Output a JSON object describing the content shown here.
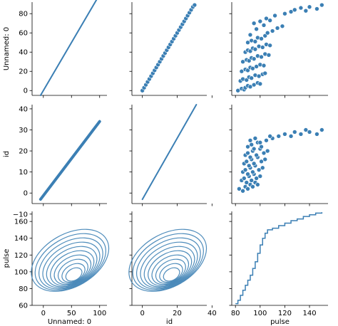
{
  "chart_data": {
    "type": "pairplot",
    "variables": [
      "Unnamed: 0",
      "id",
      "pulse"
    ],
    "color": "#3b7fb4",
    "panels": [
      {
        "row": 0,
        "col": 0,
        "type": "line",
        "x": [
          -5,
          95
        ],
        "y": [
          -5,
          95
        ]
      },
      {
        "row": 0,
        "col": 1,
        "type": "scatter",
        "x": [
          0,
          1,
          2,
          3,
          4,
          5,
          6,
          7,
          8,
          9,
          10,
          11,
          12,
          13,
          14,
          15,
          16,
          17,
          18,
          19,
          20,
          21,
          22,
          23,
          24,
          25,
          26,
          27,
          28,
          29,
          30
        ],
        "y": [
          0,
          3,
          6,
          9,
          12,
          15,
          18,
          21,
          24,
          27,
          30,
          33,
          36,
          39,
          42,
          45,
          48,
          51,
          54,
          57,
          60,
          63,
          66,
          69,
          72,
          75,
          78,
          81,
          84,
          87,
          89
        ]
      },
      {
        "row": 0,
        "col": 2,
        "type": "scatter",
        "x": [
          82,
          85,
          87,
          88,
          90,
          92,
          95,
          98,
          100,
          84,
          86,
          89,
          91,
          93,
          96,
          99,
          102,
          104,
          85,
          88,
          90,
          92,
          94,
          97,
          100,
          103,
          86,
          89,
          91,
          93,
          95,
          98,
          101,
          104,
          107,
          88,
          90,
          92,
          94,
          96,
          99,
          102,
          105,
          108,
          90,
          93,
          96,
          98,
          101,
          104,
          106,
          110,
          114,
          118,
          95,
          100,
          105,
          112,
          120,
          125,
          128,
          133,
          137,
          140,
          146,
          150,
          92,
          97,
          103,
          108
        ],
        "y": [
          0,
          2,
          1,
          3,
          5,
          4,
          6,
          8,
          7,
          10,
          12,
          11,
          14,
          13,
          16,
          15,
          17,
          18,
          20,
          22,
          21,
          24,
          23,
          25,
          27,
          26,
          30,
          32,
          31,
          34,
          33,
          36,
          35,
          38,
          37,
          40,
          42,
          41,
          44,
          43,
          46,
          45,
          48,
          47,
          50,
          52,
          51,
          55,
          54,
          57,
          60,
          62,
          65,
          67,
          70,
          72,
          75,
          78,
          80,
          82,
          84,
          86,
          83,
          87,
          85,
          89,
          58,
          64,
          68,
          73
        ]
      },
      {
        "row": 1,
        "col": 0,
        "type": "line",
        "x": [
          -5,
          100
        ],
        "y": [
          -3,
          34
        ]
      },
      {
        "row": 1,
        "col": 1,
        "type": "line",
        "x": [
          0,
          31
        ],
        "y": [
          -3,
          42
        ]
      },
      {
        "row": 1,
        "col": 2,
        "type": "scatter",
        "x": [
          83,
          86,
          88,
          90,
          92,
          94,
          96,
          98,
          85,
          87,
          89,
          91,
          93,
          95,
          97,
          100,
          86,
          88,
          90,
          92,
          94,
          96,
          99,
          102,
          87,
          89,
          91,
          93,
          95,
          98,
          101,
          104,
          88,
          90,
          92,
          94,
          97,
          100,
          103,
          106,
          90,
          93,
          95,
          98,
          101,
          105,
          110,
          115,
          120,
          125,
          128,
          133,
          137,
          140,
          146,
          150,
          92,
          96,
          100,
          108
        ],
        "y": [
          2,
          1,
          3,
          2,
          4,
          3,
          5,
          4,
          6,
          7,
          5,
          8,
          6,
          9,
          7,
          8,
          10,
          11,
          9,
          12,
          10,
          13,
          11,
          12,
          14,
          15,
          13,
          16,
          14,
          17,
          15,
          16,
          18,
          19,
          17,
          20,
          18,
          21,
          19,
          20,
          22,
          23,
          21,
          24,
          22,
          25,
          26,
          27,
          28,
          27,
          29,
          28,
          30,
          29,
          28,
          30,
          25,
          26,
          24,
          27
        ]
      },
      {
        "row": 2,
        "col": 0,
        "type": "kde",
        "peak": [
          55,
          95
        ]
      },
      {
        "row": 2,
        "col": 1,
        "type": "kde",
        "peak": [
          17,
          95
        ]
      },
      {
        "row": 2,
        "col": 2,
        "type": "ecdf_step",
        "x": [
          80,
          82,
          84,
          86,
          88,
          90,
          92,
          94,
          96,
          98,
          100,
          102,
          104,
          106,
          110,
          115,
          120,
          125,
          130,
          135,
          140,
          145,
          150
        ],
        "y": [
          62,
          66,
          72,
          78,
          84,
          90,
          96,
          104,
          112,
          122,
          132,
          140,
          146,
          150,
          152,
          155,
          158,
          161,
          163,
          166,
          168,
          170,
          171
        ]
      }
    ],
    "axes": {
      "rows": [
        {
          "label": "Unnamed: 0",
          "ylim": [
            -5,
            92
          ],
          "ticks": [
            "0",
            "20",
            "40",
            "60",
            "80"
          ],
          "tick_values": [
            0,
            20,
            40,
            60,
            80
          ]
        },
        {
          "label": "id",
          "ylim": [
            -5,
            42
          ],
          "ticks": [
            "−10",
            "0",
            "10",
            "20",
            "30",
            "40"
          ],
          "tick_values": [
            -10,
            0,
            10,
            20,
            30,
            40
          ]
        },
        {
          "label": "pulse",
          "ylim": [
            60,
            172
          ],
          "ticks": [
            "60",
            "80",
            "100",
            "120",
            "140",
            "160"
          ],
          "tick_values": [
            60,
            80,
            100,
            120,
            140,
            160
          ]
        }
      ],
      "cols": [
        {
          "label": "Unnamed: 0",
          "xlim": [
            -20,
            113
          ],
          "ticks": [
            "0",
            "50",
            "100"
          ],
          "tick_values": [
            0,
            50,
            100
          ]
        },
        {
          "label": "id",
          "xlim": [
            -6,
            37
          ],
          "ticks": [
            "0",
            "20",
            "40"
          ],
          "tick_values": [
            0,
            20,
            40
          ]
        },
        {
          "label": "pulse",
          "xlim": [
            77,
            155
          ],
          "ticks": [
            "80",
            "100",
            "120",
            "140"
          ],
          "tick_values": [
            80,
            100,
            120,
            140
          ]
        }
      ]
    }
  }
}
